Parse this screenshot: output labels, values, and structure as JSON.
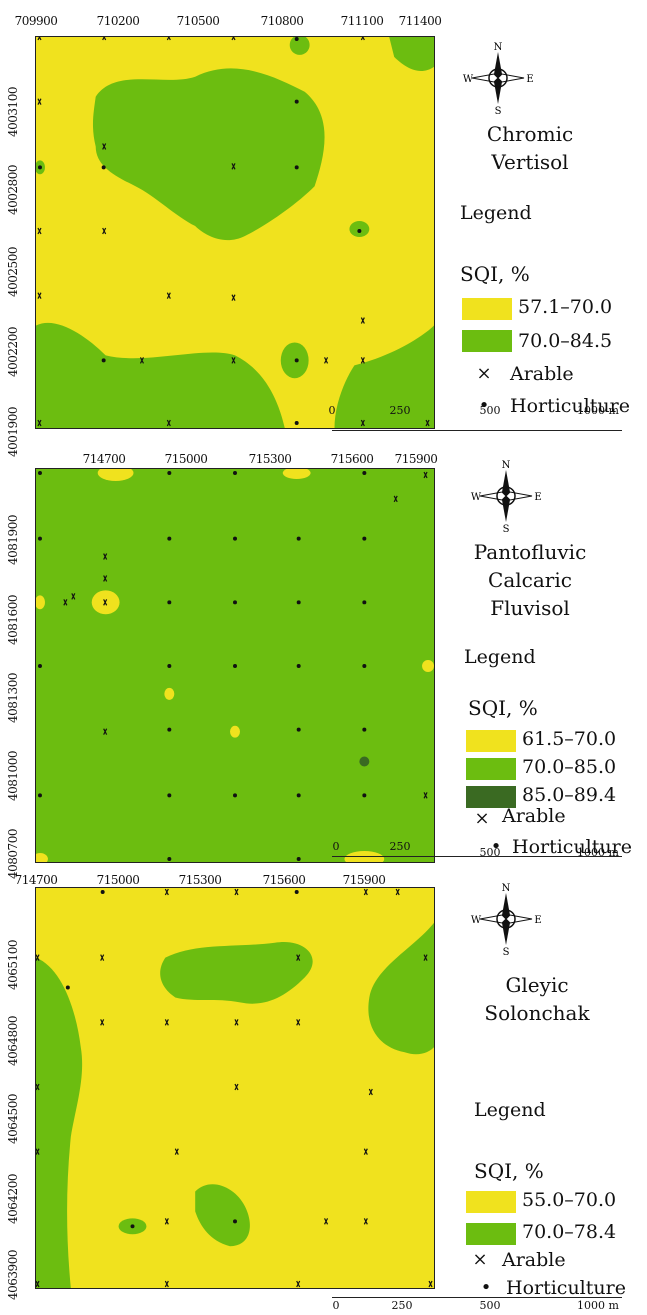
{
  "maps": [
    {
      "soil_name_lines": [
        "Chromic",
        "Vertisol"
      ],
      "x_ticks": [
        "709900",
        "710200",
        "710500",
        "710800",
        "711100",
        "711400"
      ],
      "y_ticks": [
        "4003100",
        "4002800",
        "4002500",
        "4002200",
        "4001900"
      ],
      "legend_title": "Legend",
      "sqi_title": "SQI, %",
      "classes": [
        {
          "label": "57.1–70.0",
          "color": "#f0e21e"
        },
        {
          "label": "70.0–84.5",
          "color": "#6cbd10"
        }
      ],
      "markers": [
        {
          "symbol": "×",
          "label": "Arable"
        },
        {
          "symbol": "•",
          "label": "Horticulture"
        }
      ],
      "scale": [
        "0",
        "250",
        "500",
        "1000 m"
      ]
    },
    {
      "soil_name_lines": [
        "Pantofluvic",
        "Calcaric",
        "Fluvisol"
      ],
      "x_ticks": [
        "714700",
        "715000",
        "715300",
        "715600",
        "715900"
      ],
      "y_ticks": [
        "4081900",
        "4081600",
        "4081300",
        "4081000",
        "4080700"
      ],
      "legend_title": "Legend",
      "sqi_title": "SQI, %",
      "classes": [
        {
          "label": "61.5–70.0",
          "color": "#f0e21e"
        },
        {
          "label": "70.0–85.0",
          "color": "#6cbd10"
        },
        {
          "label": "85.0–89.4",
          "color": "#3a6a22"
        }
      ],
      "markers": [
        {
          "symbol": "×",
          "label": "Arable"
        },
        {
          "symbol": "•",
          "label": "Horticulture"
        }
      ],
      "scale": [
        "0",
        "250",
        "500",
        "1000 m"
      ]
    },
    {
      "soil_name_lines": [
        "Gleyic",
        "Solonchak"
      ],
      "x_ticks": [
        "714700",
        "715000",
        "715300",
        "715600",
        "715900"
      ],
      "y_ticks": [
        "4065100",
        "4064800",
        "4064500",
        "4064200",
        "4063900"
      ],
      "legend_title": "Legend",
      "sqi_title": "SQI, %",
      "classes": [
        {
          "label": "55.0–70.0",
          "color": "#f0e21e"
        },
        {
          "label": "70.0–78.4",
          "color": "#6cbd10"
        }
      ],
      "markers": [
        {
          "symbol": "×",
          "label": "Arable"
        },
        {
          "symbol": "•",
          "label": "Horticulture"
        }
      ],
      "scale": [
        "0",
        "250",
        "500",
        "1000 m"
      ]
    }
  ],
  "compass": {
    "n": "N",
    "s": "S",
    "e": "E",
    "w": "W"
  }
}
